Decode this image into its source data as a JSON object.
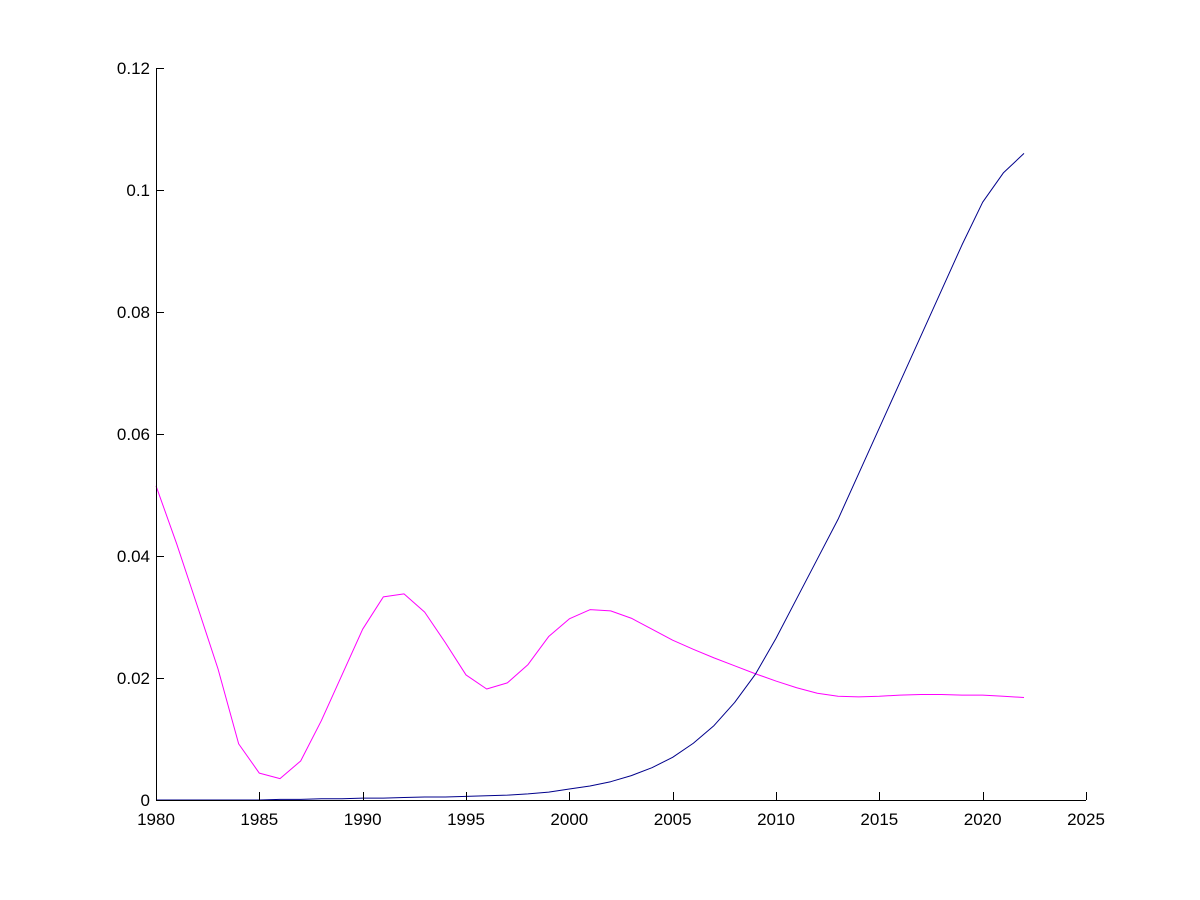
{
  "chart_data": {
    "type": "line",
    "title": "",
    "xlabel": "",
    "ylabel": "",
    "xlim": [
      1980,
      2025
    ],
    "ylim": [
      0,
      0.12
    ],
    "grid": false,
    "x_ticks": [
      1980,
      1985,
      1990,
      1995,
      2000,
      2005,
      2010,
      2015,
      2020,
      2025
    ],
    "x_tick_labels": [
      "1980",
      "1985",
      "1990",
      "1995",
      "2000",
      "2005",
      "2010",
      "2015",
      "2020",
      "2025"
    ],
    "y_ticks": [
      0,
      0.02,
      0.04,
      0.06,
      0.08,
      0.1,
      0.12
    ],
    "y_tick_labels": [
      "0",
      "0.02",
      "0.04",
      "0.06",
      "0.08",
      "0.1",
      "0.12"
    ],
    "x": [
      1980,
      1981,
      1982,
      1983,
      1984,
      1985,
      1986,
      1987,
      1988,
      1989,
      1990,
      1991,
      1992,
      1993,
      1994,
      1995,
      1996,
      1997,
      1998,
      1999,
      2000,
      2001,
      2002,
      2003,
      2004,
      2005,
      2006,
      2007,
      2008,
      2009,
      2010,
      2011,
      2012,
      2013,
      2014,
      2015,
      2016,
      2017,
      2018,
      2019,
      2020,
      2021,
      2022
    ],
    "series": [
      {
        "color": "#ff00ff",
        "values": [
          0.0515,
          0.042,
          0.0318,
          0.0215,
          0.0092,
          0.0044,
          0.0035,
          0.0064,
          0.013,
          0.0205,
          0.028,
          0.0333,
          0.0338,
          0.0308,
          0.0258,
          0.0205,
          0.0182,
          0.0192,
          0.0222,
          0.0268,
          0.0297,
          0.0312,
          0.031,
          0.0298,
          0.028,
          0.0262,
          0.0247,
          0.0233,
          0.022,
          0.0207,
          0.0195,
          0.0184,
          0.0175,
          0.017,
          0.0169,
          0.017,
          0.0172,
          0.0173,
          0.0173,
          0.0172,
          0.0172,
          0.017,
          0.0168
        ]
      },
      {
        "color": "#00008b",
        "values": [
          0.0,
          0.0,
          0.0,
          0.0,
          0.0,
          0.0,
          0.0001,
          0.0001,
          0.0002,
          0.0002,
          0.0003,
          0.0003,
          0.0004,
          0.0005,
          0.0005,
          0.0006,
          0.0007,
          0.0008,
          0.001,
          0.0013,
          0.0018,
          0.0023,
          0.003,
          0.004,
          0.0053,
          0.007,
          0.0093,
          0.0122,
          0.016,
          0.0206,
          0.0265,
          0.033,
          0.0395,
          0.046,
          0.0535,
          0.061,
          0.0685,
          0.076,
          0.0835,
          0.091,
          0.098,
          0.1028,
          0.106
        ]
      }
    ]
  }
}
